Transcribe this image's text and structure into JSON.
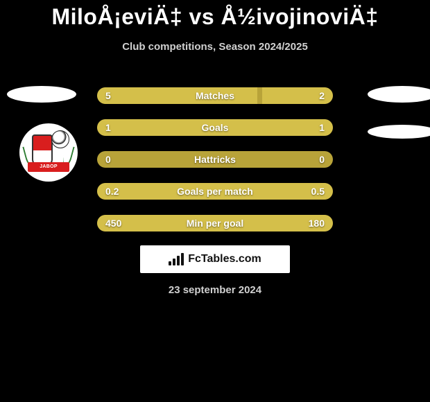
{
  "title": "MiloÅ¡eviÄ‡ vs Å½ivojinoviÄ‡",
  "subtitle": "Club competitions, Season 2024/2025",
  "date": "23 september 2024",
  "colors": {
    "background": "#000000",
    "bar_base": "#b8a339",
    "bar_fill": "#d4bf4a",
    "text": "#ffffff"
  },
  "logo": {
    "banner_text": "JAВOP"
  },
  "rows": [
    {
      "label": "Matches",
      "left": "5",
      "right": "2",
      "left_pct": 68,
      "right_pct": 30
    },
    {
      "label": "Goals",
      "left": "1",
      "right": "1",
      "left_pct": 100,
      "right_pct": 0
    },
    {
      "label": "Hattricks",
      "left": "0",
      "right": "0",
      "left_pct": 0,
      "right_pct": 0
    },
    {
      "label": "Goals per match",
      "left": "0.2",
      "right": "0.5",
      "left_pct": 100,
      "right_pct": 0
    },
    {
      "label": "Min per goal",
      "left": "450",
      "right": "180",
      "left_pct": 100,
      "right_pct": 0
    }
  ],
  "brand": {
    "prefix": "Fc",
    "suffix": "Tables.com"
  }
}
